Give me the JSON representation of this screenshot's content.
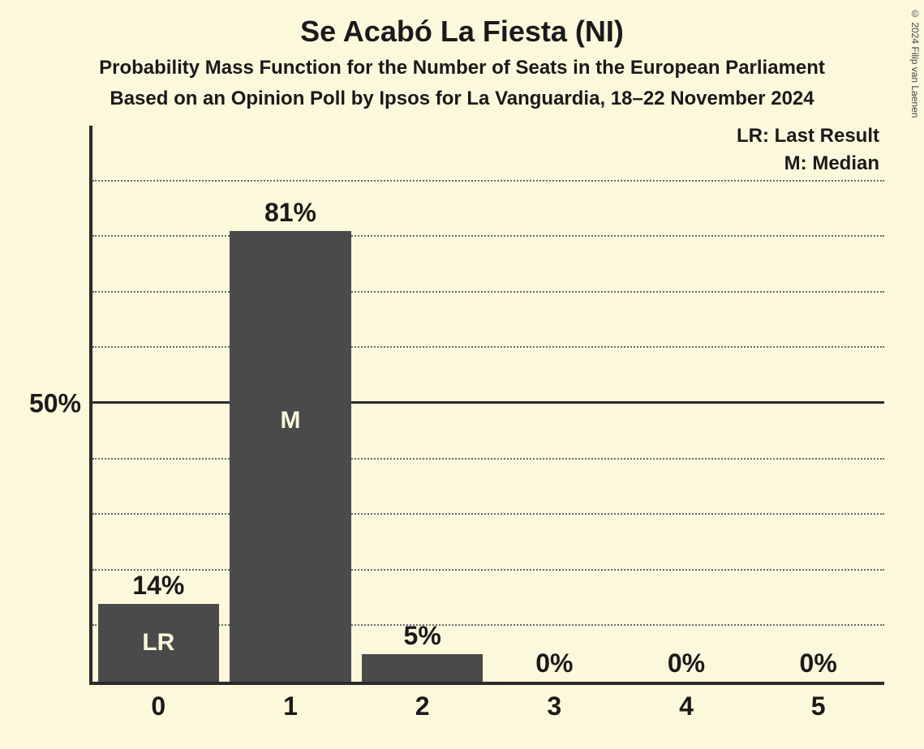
{
  "title": "Se Acabó La Fiesta (NI)",
  "subtitle1": "Probability Mass Function for the Number of Seats in the European Parliament",
  "subtitle2": "Based on an Opinion Poll by Ipsos for La Vanguardia, 18–22 November 2024",
  "copyright": "© 2024 Filip van Laenen",
  "legend": {
    "lr": "LR: Last Result",
    "m": "M: Median"
  },
  "chart": {
    "type": "bar",
    "background_color": "#fbf8dc",
    "bar_color": "#4a4a4a",
    "axis_color": "#2a2a2a",
    "grid_dotted_color": "#6a6a6a",
    "text_color": "#1a1a1a",
    "bar_text_color": "#fbf8dc",
    "title_fontsize": 36,
    "subtitle_fontsize": 24,
    "tick_fontsize": 32,
    "legend_fontsize": 24,
    "ylim_max": 100,
    "y_major_ticks": [
      50
    ],
    "y_minor_step": 10,
    "y_tick_labels": {
      "50": "50%"
    },
    "bar_width_ratio": 0.92,
    "categories": [
      "0",
      "1",
      "2",
      "3",
      "4",
      "5"
    ],
    "values": [
      14,
      81,
      5,
      0,
      0,
      0
    ],
    "value_labels": [
      "14%",
      "81%",
      "5%",
      "0%",
      "0%",
      "0%"
    ],
    "inner_labels": {
      "0": {
        "text": "LR",
        "vpos": "middle"
      },
      "1": {
        "text": "M",
        "vpos": "upper"
      }
    }
  }
}
